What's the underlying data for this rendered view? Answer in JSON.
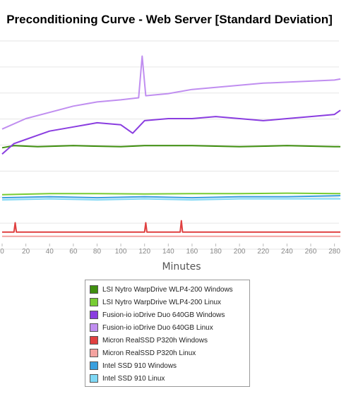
{
  "chart_data": {
    "type": "line",
    "title": "Preconditioning Curve - Web Server [Standard Deviation]",
    "xlabel": "Minutes",
    "ylabel": "",
    "x_ticks": [
      0,
      20,
      40,
      60,
      80,
      100,
      120,
      140,
      160,
      180,
      200,
      220,
      240,
      260,
      280
    ],
    "xlim": [
      0,
      285
    ],
    "ylim": [
      0,
      10
    ],
    "grid": true,
    "legend_position": "bottom",
    "series": [
      {
        "name": "LSI Nytro WarpDrive WLP4-200 Windows",
        "color": "#3f8f0f",
        "values": [
          [
            0,
            4.6
          ],
          [
            10,
            4.7
          ],
          [
            30,
            4.65
          ],
          [
            60,
            4.7
          ],
          [
            100,
            4.65
          ],
          [
            120,
            4.7
          ],
          [
            160,
            4.7
          ],
          [
            200,
            4.65
          ],
          [
            240,
            4.7
          ],
          [
            280,
            4.65
          ],
          [
            285,
            4.65
          ]
        ]
      },
      {
        "name": "LSI Nytro WarpDrive WLP4-200 Linux",
        "color": "#77cc33",
        "values": [
          [
            0,
            2.35
          ],
          [
            40,
            2.4
          ],
          [
            80,
            2.4
          ],
          [
            120,
            2.38
          ],
          [
            160,
            2.4
          ],
          [
            200,
            2.4
          ],
          [
            240,
            2.42
          ],
          [
            285,
            2.4
          ]
        ]
      },
      {
        "name": "Fusion-io ioDrive Duo 640GB Windows",
        "color": "#8a3de0",
        "values": [
          [
            0,
            4.3
          ],
          [
            10,
            4.8
          ],
          [
            20,
            5.0
          ],
          [
            30,
            5.2
          ],
          [
            40,
            5.4
          ],
          [
            60,
            5.6
          ],
          [
            80,
            5.8
          ],
          [
            100,
            5.7
          ],
          [
            110,
            5.3
          ],
          [
            120,
            5.9
          ],
          [
            140,
            6.0
          ],
          [
            160,
            6.0
          ],
          [
            180,
            6.1
          ],
          [
            200,
            6.0
          ],
          [
            220,
            5.9
          ],
          [
            240,
            6.0
          ],
          [
            260,
            6.1
          ],
          [
            280,
            6.2
          ],
          [
            285,
            6.4
          ]
        ]
      },
      {
        "name": "Fusion-io ioDrive Duo 640GB Linux",
        "color": "#c08ef0",
        "values": [
          [
            0,
            5.5
          ],
          [
            20,
            6.0
          ],
          [
            40,
            6.3
          ],
          [
            60,
            6.6
          ],
          [
            80,
            6.8
          ],
          [
            100,
            6.9
          ],
          [
            115,
            7.0
          ],
          [
            118,
            9.0
          ],
          [
            121,
            7.1
          ],
          [
            140,
            7.2
          ],
          [
            160,
            7.4
          ],
          [
            180,
            7.5
          ],
          [
            200,
            7.6
          ],
          [
            220,
            7.7
          ],
          [
            240,
            7.75
          ],
          [
            260,
            7.8
          ],
          [
            280,
            7.85
          ],
          [
            285,
            7.9
          ]
        ]
      },
      {
        "name": "Micron RealSSD P320h Windows",
        "color": "#e04040",
        "values": [
          [
            0,
            0.55
          ],
          [
            10,
            0.55
          ],
          [
            11,
            1.0
          ],
          [
            12,
            0.55
          ],
          [
            120,
            0.55
          ],
          [
            121,
            1.0
          ],
          [
            122,
            0.55
          ],
          [
            150,
            0.55
          ],
          [
            151,
            1.1
          ],
          [
            152,
            0.55
          ],
          [
            285,
            0.55
          ]
        ]
      },
      {
        "name": "Micron RealSSD P320h Linux",
        "color": "#f4a3a0",
        "values": [
          [
            0,
            0.35
          ],
          [
            100,
            0.35
          ],
          [
            200,
            0.35
          ],
          [
            285,
            0.35
          ]
        ]
      },
      {
        "name": "Intel SSD 910 Windows",
        "color": "#3a9fde",
        "values": [
          [
            0,
            2.2
          ],
          [
            40,
            2.25
          ],
          [
            80,
            2.2
          ],
          [
            120,
            2.25
          ],
          [
            160,
            2.2
          ],
          [
            200,
            2.25
          ],
          [
            240,
            2.25
          ],
          [
            285,
            2.3
          ]
        ]
      },
      {
        "name": "Intel SSD 910 Linux",
        "color": "#7fd8f5",
        "values": [
          [
            0,
            2.1
          ],
          [
            40,
            2.15
          ],
          [
            80,
            2.1
          ],
          [
            120,
            2.15
          ],
          [
            160,
            2.1
          ],
          [
            200,
            2.15
          ],
          [
            240,
            2.15
          ],
          [
            285,
            2.15
          ]
        ]
      }
    ]
  }
}
